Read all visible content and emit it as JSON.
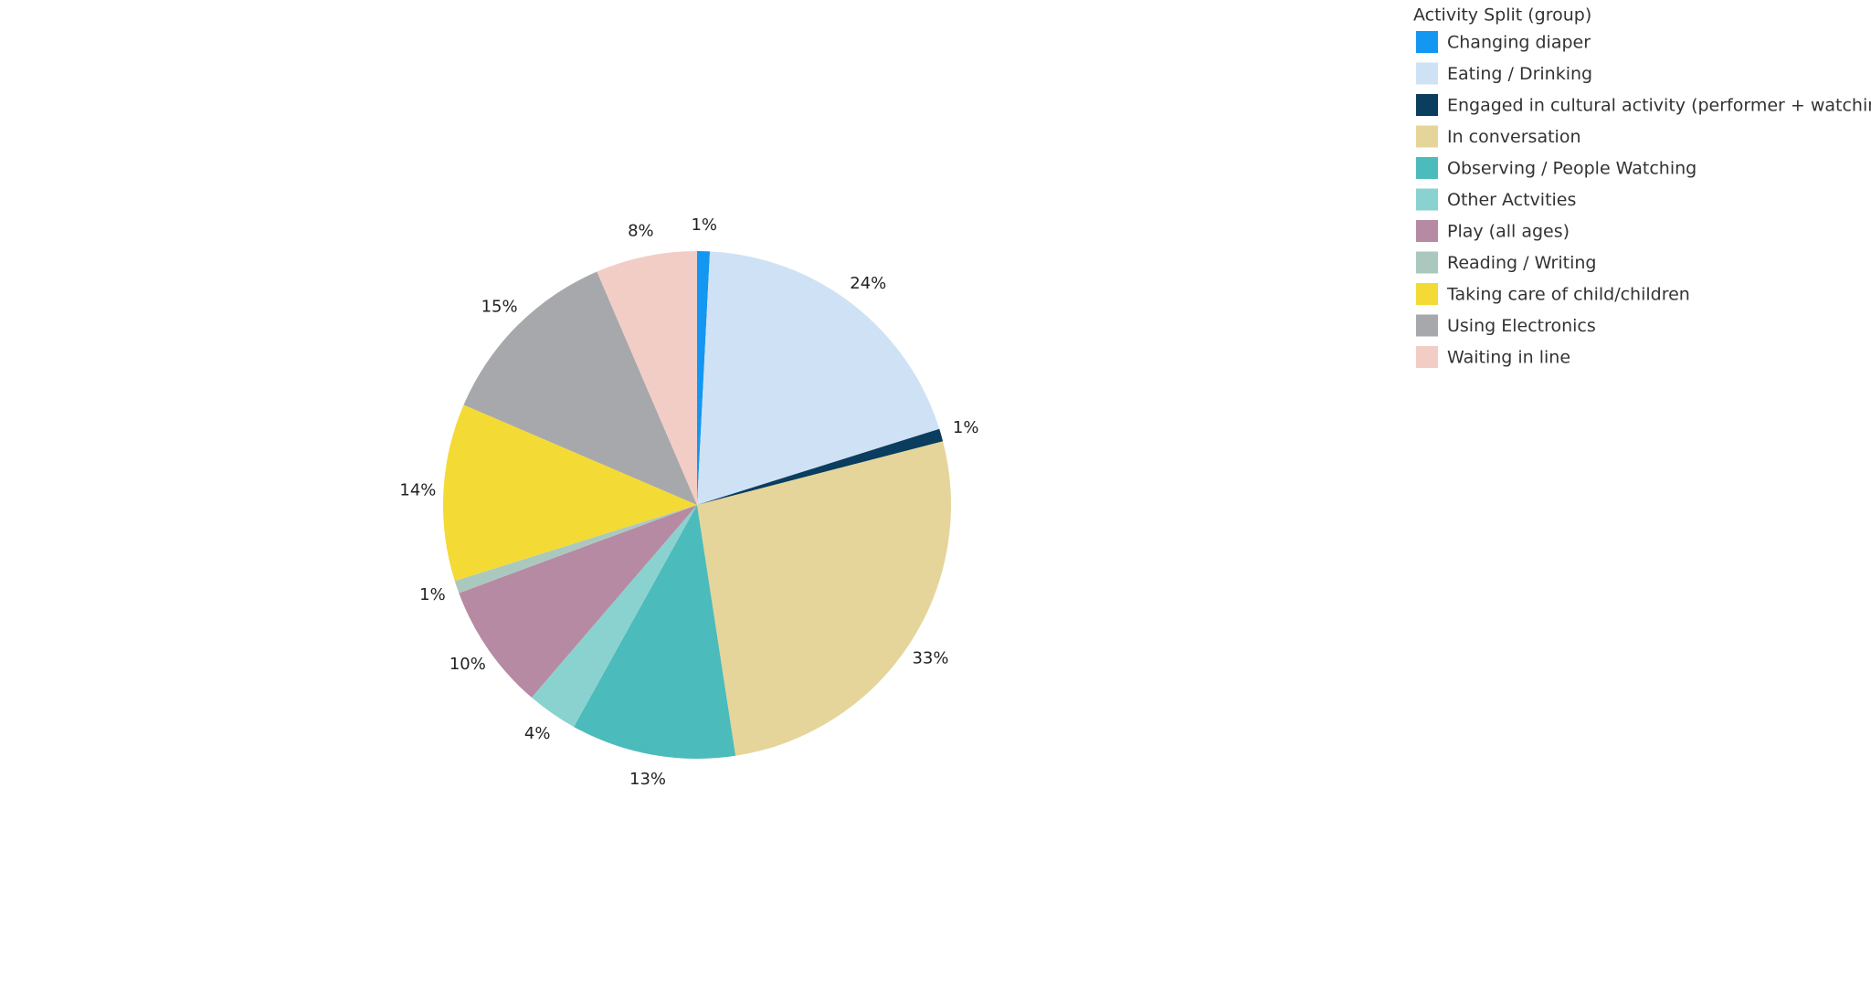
{
  "chart_data": {
    "type": "pie",
    "legend_title": "Activity Split (group)",
    "legend": "top-right",
    "categories": [
      "Changing diaper",
      "Eating / Drinking",
      "Engaged in cultural activity (performer + watching)",
      "In conversation",
      "Observing / People Watching",
      "Other Actvities",
      "Play (all ages)",
      "Reading / Writing",
      "Taking care of child/children",
      "Using Electronics",
      "Waiting in line"
    ],
    "values": [
      1,
      24,
      1,
      33,
      13,
      4,
      10,
      1,
      14,
      15,
      8
    ],
    "value_labels": [
      "1%",
      "24%",
      "1%",
      "33%",
      "13%",
      "4%",
      "10%",
      "1%",
      "14%",
      "15%",
      "8%"
    ],
    "colors": [
      "#1497f0",
      "#cfe1f5",
      "#0a3d5e",
      "#e5d59a",
      "#4bbbbb",
      "#8ad2cf",
      "#b68aa3",
      "#abc8bf",
      "#f4da34",
      "#a7a8ab",
      "#f2cdc6"
    ]
  }
}
